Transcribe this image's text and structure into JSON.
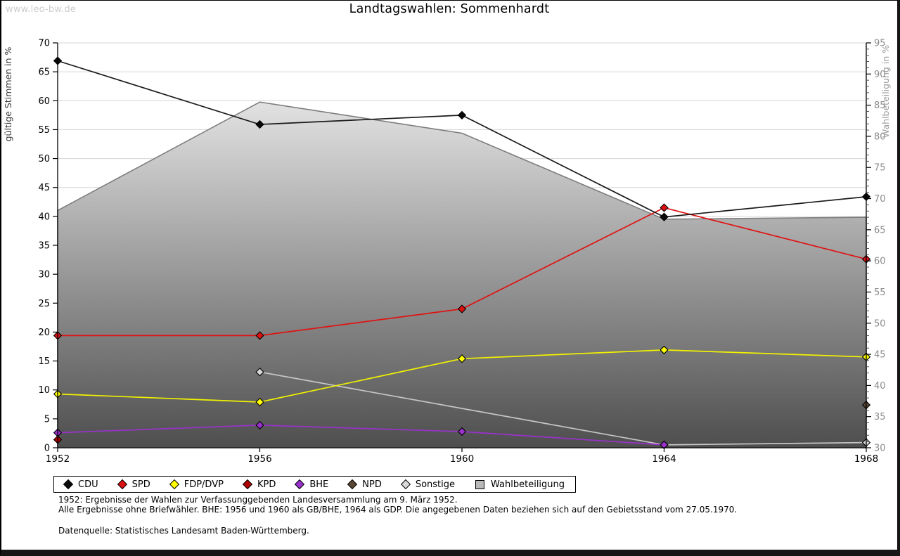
{
  "watermark": "www.leo-bw.de",
  "title": "Landtagswahlen: Sommenhardt",
  "chart_data": {
    "type": "line",
    "x_categories": [
      1952,
      1956,
      1960,
      1964,
      1968
    ],
    "left_axis": {
      "label": "gültige Stimmen in %",
      "min": 0,
      "max": 70,
      "tick_step": 5,
      "ticks": [
        0,
        5,
        10,
        15,
        20,
        25,
        30,
        35,
        40,
        45,
        50,
        55,
        60,
        65,
        70
      ]
    },
    "right_axis": {
      "label": "Wahlbeteiligung in %",
      "min": 30,
      "max": 95,
      "tick_step": 5,
      "ticks": [
        30,
        35,
        40,
        45,
        50,
        55,
        60,
        65,
        70,
        75,
        80,
        85,
        90,
        95
      ]
    },
    "grid": "horizontal",
    "legend_position": "bottom",
    "series": [
      {
        "name": "Wahlbeteiligung",
        "kind": "area",
        "axis": "right",
        "line_color": "#7d7d7d",
        "fill_top": "#fbfbfb",
        "fill_bottom": "#4e4e4e",
        "points": [
          [
            1952,
            68.1
          ],
          [
            1956,
            85.5
          ],
          [
            1960,
            80.5
          ],
          [
            1964,
            66.7
          ],
          [
            1968,
            67.0
          ]
        ]
      },
      {
        "name": "Sonstige",
        "kind": "line",
        "axis": "left",
        "line_color": "#c6c6c6",
        "marker_fill": "#d8d8d8",
        "points": [
          [
            1956,
            13.1
          ],
          [
            1964,
            0.5
          ],
          [
            1968,
            0.9
          ]
        ]
      },
      {
        "name": "BHE",
        "kind": "line",
        "axis": "left",
        "line_color": "#9932cc",
        "marker_fill": "#9932cc",
        "points": [
          [
            1952,
            2.6
          ],
          [
            1956,
            3.9
          ],
          [
            1960,
            2.8
          ],
          [
            1964,
            0.5
          ]
        ]
      },
      {
        "name": "KPD",
        "kind": "line",
        "axis": "left",
        "line_color": "#a00000",
        "marker_fill": "#b00000",
        "points": [
          [
            1952,
            1.4
          ]
        ]
      },
      {
        "name": "NPD",
        "kind": "line",
        "axis": "left",
        "line_color": "#5a4632",
        "marker_fill": "#5a4632",
        "points": [
          [
            1968,
            7.4
          ]
        ]
      },
      {
        "name": "FDP/DVP",
        "kind": "line",
        "axis": "left",
        "line_color": "#f2f200",
        "marker_fill": "#ffff00",
        "points": [
          [
            1952,
            9.3
          ],
          [
            1956,
            7.9
          ],
          [
            1960,
            15.4
          ],
          [
            1964,
            16.9
          ],
          [
            1968,
            15.7
          ]
        ]
      },
      {
        "name": "SPD",
        "kind": "line",
        "axis": "left",
        "line_color": "#e01212",
        "marker_fill": "#dd1111",
        "points": [
          [
            1952,
            19.4
          ],
          [
            1956,
            19.4
          ],
          [
            1960,
            24.0
          ],
          [
            1964,
            41.5
          ],
          [
            1968,
            32.6
          ]
        ]
      },
      {
        "name": "CDU",
        "kind": "line",
        "axis": "left",
        "line_color": "#1a1a1a",
        "marker_fill": "#0a0a0a",
        "points": [
          [
            1952,
            66.9
          ],
          [
            1956,
            55.9
          ],
          [
            1960,
            57.5
          ],
          [
            1964,
            39.9
          ],
          [
            1968,
            43.4
          ]
        ]
      }
    ]
  },
  "legend": {
    "items": [
      {
        "label": "CDU",
        "marker": "diamond",
        "color": "#0a0a0a"
      },
      {
        "label": "SPD",
        "marker": "diamond",
        "color": "#dd1111"
      },
      {
        "label": "FDP/DVP",
        "marker": "diamond",
        "color": "#ffff00"
      },
      {
        "label": "KPD",
        "marker": "diamond",
        "color": "#b00000"
      },
      {
        "label": "BHE",
        "marker": "diamond",
        "color": "#9932cc"
      },
      {
        "label": "NPD",
        "marker": "diamond",
        "color": "#5a4632"
      },
      {
        "label": "Sonstige",
        "marker": "diamond",
        "color": "#d8d8d8"
      },
      {
        "label": "Wahlbeteiligung",
        "marker": "square",
        "color": "#b8b8b8"
      }
    ]
  },
  "footnotes": {
    "line1": "1952: Ergebnisse der Wahlen zur Verfassunggebenden Landesversammlung am 9. März 1952.",
    "line2": "Alle Ergebnisse ohne Briefwähler. BHE: 1956 und 1960 als GB/BHE, 1964 als GDP. Die angegebenen Daten beziehen sich auf den Gebietsstand vom 27.05.1970.",
    "source": "Datenquelle: Statistisches Landesamt Baden-Württemberg."
  }
}
